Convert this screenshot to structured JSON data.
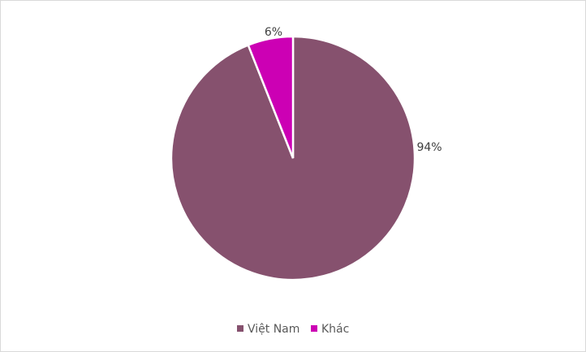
{
  "chart_data": {
    "type": "pie",
    "title": "",
    "categories": [
      "Việt Nam",
      "Khác"
    ],
    "values": [
      94,
      6
    ],
    "data_labels": [
      "94%",
      "6%"
    ],
    "colors": [
      "#86516E",
      "#CC00B4"
    ],
    "legend_placement": "bottom",
    "start_angle_deg": 0,
    "direction": "clockwise"
  }
}
